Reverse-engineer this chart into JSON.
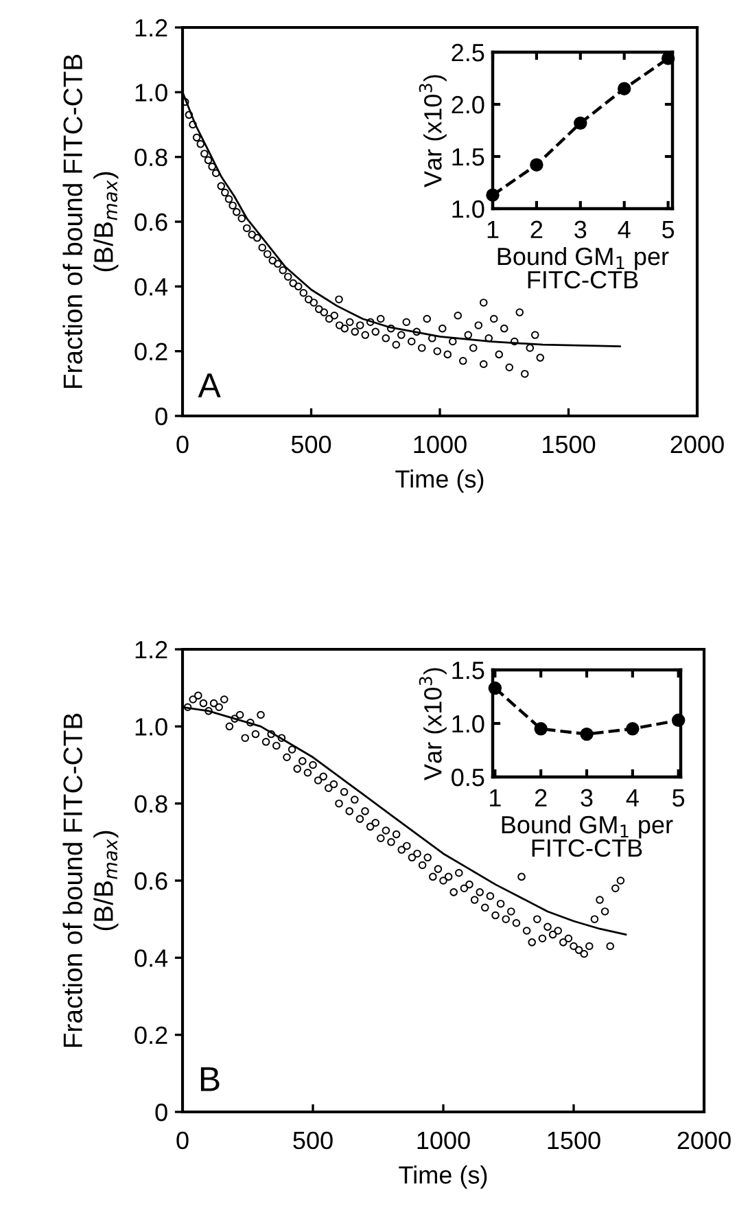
{
  "chart_data": [
    {
      "type": "scatter",
      "xlabel": "Time (s)",
      "ylabel": "Fraction of bound FITC-CTB\n(B/B$_{max}$)",
      "annotations": [
        "A"
      ],
      "xlim": [
        0,
        2000
      ],
      "ylim": [
        0,
        1.2
      ],
      "xticks": [
        0,
        500,
        1000,
        1500,
        2000
      ],
      "yticks": [
        0,
        0.2,
        0.4,
        0.6,
        0.8,
        {
          "value": 1,
          "label": "1.0"
        },
        {
          "value": 1.2,
          "label": "1.2"
        }
      ],
      "grid": false,
      "legend": false,
      "series": [
        {
          "color": "#000000",
          "marker": "circle",
          "x": [
            10,
            25,
            40,
            55,
            70,
            85,
            100,
            115,
            130,
            150,
            165,
            180,
            195,
            210,
            230,
            250,
            270,
            290,
            310,
            330,
            350,
            370,
            390,
            410,
            430,
            450,
            470,
            490,
            510,
            530,
            550,
            570,
            590,
            608,
            610,
            630,
            650,
            670,
            690,
            710,
            730,
            750,
            770,
            790,
            810,
            830,
            850,
            870,
            890,
            910,
            930,
            950,
            970,
            990,
            1010,
            1030,
            1050,
            1070,
            1090,
            1110,
            1130,
            1150,
            1170,
            1170,
            1190,
            1210,
            1230,
            1250,
            1270,
            1290,
            1310,
            1330,
            1350,
            1370,
            1390
          ],
          "values": [
            0.97,
            0.93,
            0.9,
            0.86,
            0.84,
            0.81,
            0.79,
            0.77,
            0.75,
            0.71,
            0.69,
            0.67,
            0.65,
            0.63,
            0.61,
            0.58,
            0.56,
            0.55,
            0.52,
            0.5,
            0.48,
            0.47,
            0.45,
            0.43,
            0.41,
            0.4,
            0.38,
            0.36,
            0.35,
            0.33,
            0.32,
            0.3,
            0.31,
            0.36,
            0.28,
            0.27,
            0.29,
            0.26,
            0.28,
            0.25,
            0.29,
            0.26,
            0.3,
            0.24,
            0.27,
            0.22,
            0.25,
            0.29,
            0.23,
            0.26,
            0.21,
            0.3,
            0.24,
            0.2,
            0.27,
            0.19,
            0.23,
            0.31,
            0.17,
            0.25,
            0.21,
            0.28,
            0.16,
            0.35,
            0.24,
            0.3,
            0.19,
            0.27,
            0.15,
            0.23,
            0.32,
            0.13,
            0.21,
            0.25,
            0.18
          ]
        },
        {
          "type": "line",
          "color": "#000000",
          "line_style": "solid",
          "x": [
            0,
            50,
            100,
            150,
            200,
            250,
            300,
            400,
            500,
            600,
            700,
            800,
            900,
            1000,
            1200,
            1400,
            1700
          ],
          "values": [
            1.0,
            0.9,
            0.82,
            0.74,
            0.68,
            0.61,
            0.56,
            0.46,
            0.39,
            0.34,
            0.3,
            0.275,
            0.26,
            0.245,
            0.23,
            0.22,
            0.215
          ]
        }
      ]
    },
    {
      "type": "line",
      "xlabel": "Bound GM$_{1}$ per\nFITC-CTB",
      "ylabel": "Var (x10$^{3}$)",
      "x": [
        1,
        2,
        3,
        4,
        5
      ],
      "xlim": [
        1,
        5.1
      ],
      "ylim": [
        1,
        2.5
      ],
      "xticks": [
        1,
        2,
        3,
        4,
        5
      ],
      "yticks": [
        {
          "value": 1,
          "label": "1.0"
        },
        {
          "value": 1.5,
          "label": "1.5"
        },
        {
          "value": 2,
          "label": "2.0"
        },
        {
          "value": 2.5,
          "label": "2.5"
        }
      ],
      "grid": false,
      "legend": false,
      "series": [
        {
          "color": "#000000",
          "marker": "circle",
          "line_style": "dashed",
          "values": [
            1.13,
            1.42,
            1.82,
            2.15,
            2.44
          ]
        }
      ]
    },
    {
      "type": "scatter",
      "xlabel": "Time (s)",
      "ylabel": "Fraction of bound FITC-CTB\n(B/B$_{max}$)",
      "annotations": [
        "B"
      ],
      "xlim": [
        0,
        2000
      ],
      "ylim": [
        0,
        1.2
      ],
      "xticks": [
        0,
        500,
        1000,
        1500,
        2000
      ],
      "yticks": [
        0,
        0.2,
        0.4,
        0.6,
        0.8,
        {
          "value": 1,
          "label": "1.0"
        },
        {
          "value": 1.2,
          "label": "1.2"
        }
      ],
      "grid": false,
      "legend": false,
      "series": [
        {
          "color": "#000000",
          "marker": "circle",
          "x": [
            20,
            40,
            60,
            80,
            100,
            120,
            140,
            160,
            180,
            200,
            220,
            240,
            260,
            280,
            300,
            320,
            340,
            360,
            380,
            400,
            420,
            440,
            460,
            480,
            500,
            520,
            540,
            560,
            580,
            600,
            620,
            640,
            660,
            680,
            700,
            720,
            740,
            760,
            780,
            800,
            820,
            840,
            860,
            880,
            900,
            920,
            940,
            960,
            980,
            1000,
            1020,
            1040,
            1060,
            1080,
            1100,
            1120,
            1140,
            1160,
            1180,
            1200,
            1220,
            1240,
            1260,
            1280,
            1300,
            1320,
            1340,
            1360,
            1380,
            1400,
            1420,
            1440,
            1460,
            1480,
            1500,
            1520,
            1540,
            1560,
            1580,
            1600,
            1620,
            1640,
            1660,
            1680
          ],
          "values": [
            1.05,
            1.07,
            1.08,
            1.06,
            1.04,
            1.06,
            1.05,
            1.07,
            1.0,
            1.02,
            1.03,
            0.97,
            1.01,
            0.98,
            1.03,
            0.96,
            0.98,
            0.95,
            0.97,
            0.92,
            0.94,
            0.89,
            0.91,
            0.88,
            0.9,
            0.86,
            0.87,
            0.84,
            0.85,
            0.8,
            0.83,
            0.78,
            0.81,
            0.76,
            0.78,
            0.74,
            0.75,
            0.71,
            0.73,
            0.7,
            0.72,
            0.68,
            0.69,
            0.66,
            0.67,
            0.64,
            0.66,
            0.61,
            0.63,
            0.6,
            0.61,
            0.57,
            0.62,
            0.58,
            0.59,
            0.55,
            0.57,
            0.53,
            0.56,
            0.51,
            0.54,
            0.5,
            0.52,
            0.49,
            0.61,
            0.47,
            0.44,
            0.5,
            0.45,
            0.48,
            0.46,
            0.47,
            0.44,
            0.45,
            0.43,
            0.42,
            0.41,
            0.43,
            0.5,
            0.55,
            0.52,
            0.43,
            0.58,
            0.6
          ]
        },
        {
          "type": "line",
          "color": "#000000",
          "line_style": "solid",
          "x": [
            0,
            100,
            200,
            300,
            400,
            500,
            600,
            700,
            800,
            900,
            1000,
            1100,
            1200,
            1300,
            1400,
            1500,
            1600,
            1700
          ],
          "values": [
            1.05,
            1.04,
            1.02,
            1.0,
            0.96,
            0.92,
            0.87,
            0.82,
            0.77,
            0.72,
            0.67,
            0.63,
            0.59,
            0.555,
            0.52,
            0.495,
            0.475,
            0.46
          ]
        }
      ]
    },
    {
      "type": "line",
      "xlabel": "Bound GM$_{1}$ per\nFITC-CTB",
      "ylabel": "Var (x10$^{3}$)",
      "x": [
        1,
        2,
        3,
        4,
        5
      ],
      "xlim": [
        0.95,
        5.05
      ],
      "ylim": [
        0.5,
        1.5
      ],
      "xticks": [
        1,
        2,
        3,
        4,
        5
      ],
      "yticks": [
        {
          "value": 0.5,
          "label": "0.5"
        },
        {
          "value": 1,
          "label": "1.0"
        },
        {
          "value": 1.5,
          "label": "1.5"
        }
      ],
      "grid": false,
      "legend": false,
      "series": [
        {
          "color": "#000000",
          "marker": "circle",
          "line_style": "dashed",
          "values": [
            1.33,
            0.95,
            0.9,
            0.95,
            1.03
          ]
        }
      ]
    }
  ]
}
